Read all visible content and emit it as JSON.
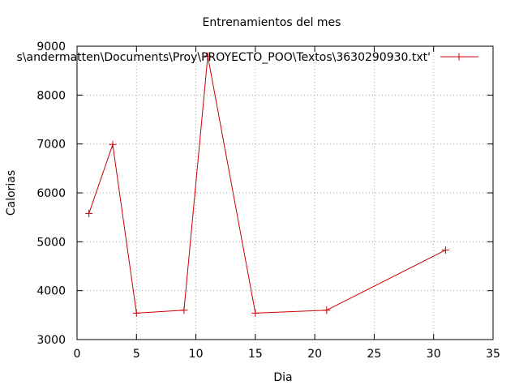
{
  "chart_data": {
    "type": "line",
    "title": "Entrenamientos del mes",
    "xlabel": "Dia",
    "ylabel": "Calorias",
    "xlim": [
      0,
      35
    ],
    "ylim": [
      3000,
      9000
    ],
    "xticks": [
      0,
      5,
      10,
      15,
      20,
      25,
      30,
      35
    ],
    "yticks": [
      3000,
      4000,
      5000,
      6000,
      7000,
      8000,
      9000
    ],
    "grid": true,
    "legend_position": "top-right",
    "series": [
      {
        "name": "s\\andermatten\\Documents\\Proy\\PROYECTO_POO\\Textos\\3630290930.txt'",
        "color": "#cc0000",
        "marker": "plus",
        "x": [
          1,
          3,
          5,
          9,
          11,
          15,
          21,
          31
        ],
        "y": [
          5580,
          6990,
          3540,
          3600,
          8800,
          3540,
          3600,
          4830
        ]
      }
    ]
  }
}
